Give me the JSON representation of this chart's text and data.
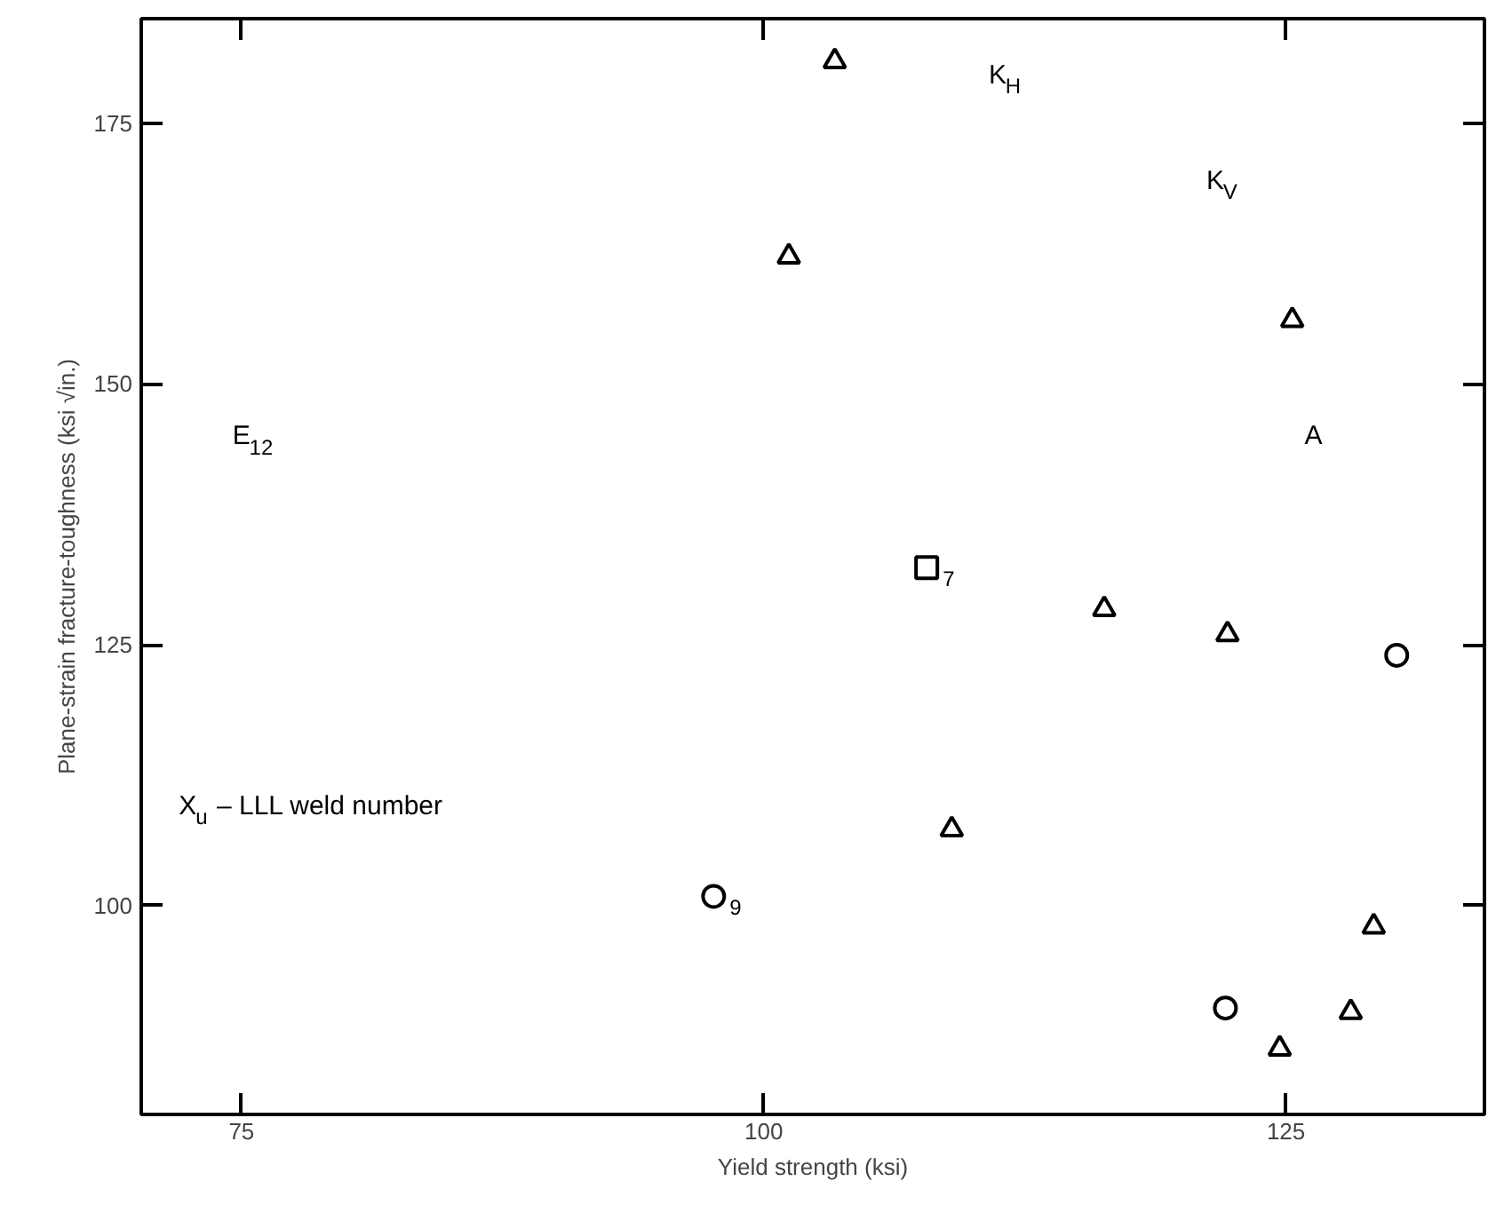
{
  "chart_data": {
    "type": "scatter",
    "xlabel": "Yield strength (ksi)",
    "ylabel": "Plane-strain fracture-toughness (ksi √in.)",
    "xlim": [
      70.2,
      134.5
    ],
    "ylim": [
      80,
      185
    ],
    "xticks": [
      75,
      100,
      125
    ],
    "yticks": [
      100,
      125,
      150,
      175
    ],
    "series": [
      {
        "color": "#000000",
        "marker": "triangle",
        "x": [
          103.4
        ],
        "values": [
          180.9
        ]
      },
      {
        "color": "#000000",
        "marker": "triangle",
        "x": [
          125.3,
          122.2
        ],
        "values": [
          156.1,
          126.0
        ]
      },
      {
        "color": "#000000",
        "marker": "triangle",
        "x": [
          101.2,
          116.3,
          129.2,
          128.1
        ],
        "values": [
          162.2,
          128.4,
          98.0,
          89.8
        ]
      },
      {
        "color": "#000000",
        "marker": "square",
        "x": [
          107.8
        ],
        "values": [
          132.4
        ]
      },
      {
        "color": "#000000",
        "marker": "circle",
        "x": [
          130.3
        ],
        "values": [
          124.0
        ]
      },
      {
        "color": "#000000",
        "marker": "triangle",
        "x": [
          109.0,
          124.7
        ],
        "values": [
          107.3,
          86.3
        ]
      },
      {
        "color": "#000000",
        "marker": "circle",
        "x": [
          97.6,
          122.1
        ],
        "values": [
          100.9,
          90.2
        ]
      }
    ],
    "annotations": [
      "K$_{H}$",
      "K$_{V}$",
      "A",
      "E$_{12}$",
      "X$_{u}$ – LLL weld number",
      {
        "text": "7",
        "x": 107.8,
        "y": 132.4
      },
      {
        "text": "9",
        "x": 97.6,
        "y": 100.9
      }
    ]
  }
}
